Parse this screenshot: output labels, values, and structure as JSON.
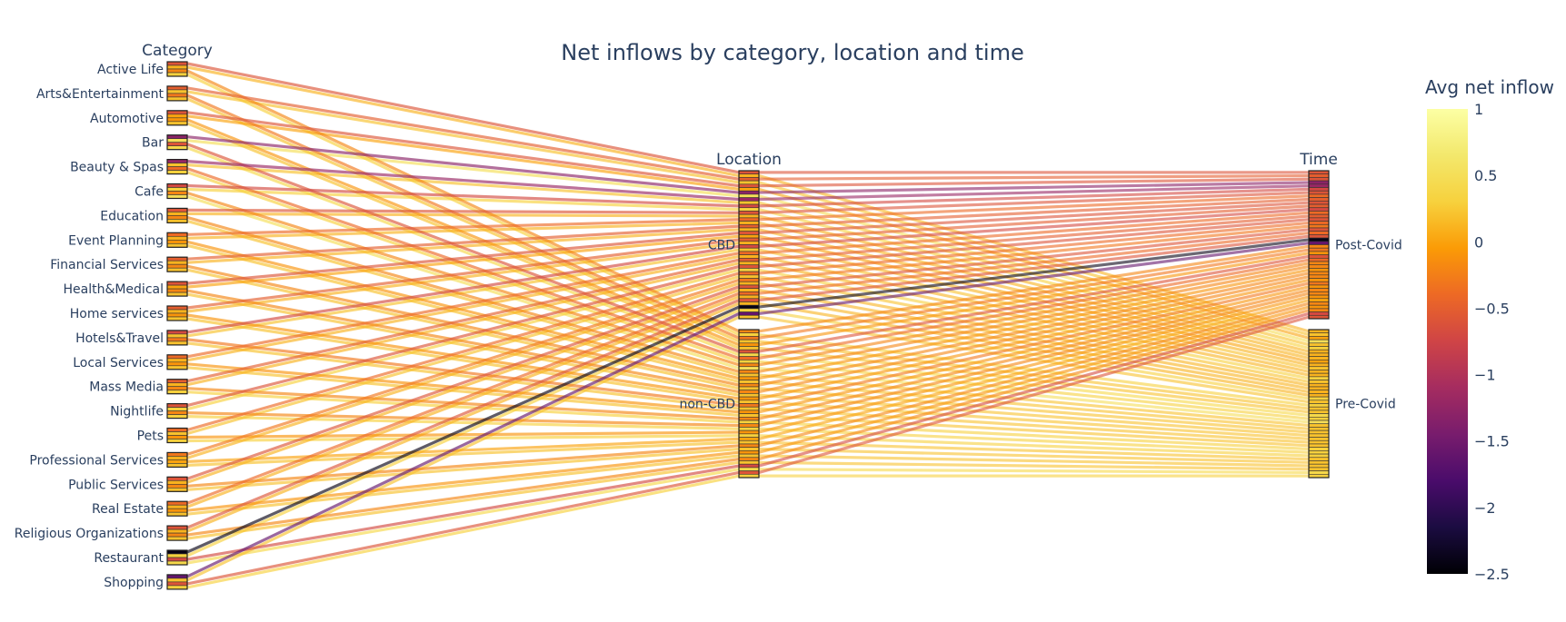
{
  "chart_data": {
    "type": "parallel_categories",
    "title": "Net inflows by category, location and time",
    "dimensions": [
      {
        "label": "Category",
        "categories": [
          "Active Life",
          "Arts&Entertainment",
          "Automotive",
          "Bar",
          "Beauty & Spas",
          "Cafe",
          "Education",
          "Event Planning",
          "Financial Services",
          "Health&Medical",
          "Home services",
          "Hotels&Travel",
          "Local Services",
          "Mass Media",
          "Nightlife",
          "Pets",
          "Professional Services",
          "Public Services",
          "Real Estate",
          "Religious Organizations",
          "Restaurant",
          "Shopping"
        ]
      },
      {
        "label": "Location",
        "categories": [
          "CBD",
          "non-CBD"
        ]
      },
      {
        "label": "Time",
        "categories": [
          "Post-Covid",
          "Pre-Covid"
        ]
      }
    ],
    "colorbar": {
      "title": "Avg net inflow",
      "range": [
        -2.5,
        1
      ],
      "ticks": [
        "1",
        "0.5",
        "0",
        "−0.5",
        "−1",
        "−1.5",
        "−2",
        "−2.5"
      ],
      "tickvals": [
        1,
        0.5,
        0,
        -0.5,
        -1,
        -1.5,
        -2,
        -2.5
      ],
      "colorscale": "Inferno"
    },
    "flows": [
      {
        "category": "Active Life",
        "location": "CBD",
        "time": "Post-Covid",
        "value": -0.6
      },
      {
        "category": "Active Life",
        "location": "CBD",
        "time": "Pre-Covid",
        "value": 0.1
      },
      {
        "category": "Active Life",
        "location": "non-CBD",
        "time": "Post-Covid",
        "value": -0.2
      },
      {
        "category": "Active Life",
        "location": "non-CBD",
        "time": "Pre-Covid",
        "value": 0.3
      },
      {
        "category": "Arts&Entertainment",
        "location": "CBD",
        "time": "Post-Covid",
        "value": -0.5
      },
      {
        "category": "Arts&Entertainment",
        "location": "CBD",
        "time": "Pre-Covid",
        "value": 0.2
      },
      {
        "category": "Arts&Entertainment",
        "location": "non-CBD",
        "time": "Post-Covid",
        "value": -0.3
      },
      {
        "category": "Arts&Entertainment",
        "location": "non-CBD",
        "time": "Pre-Covid",
        "value": 0.2
      },
      {
        "category": "Automotive",
        "location": "CBD",
        "time": "Post-Covid",
        "value": -0.6
      },
      {
        "category": "Automotive",
        "location": "CBD",
        "time": "Pre-Covid",
        "value": 0.0
      },
      {
        "category": "Automotive",
        "location": "non-CBD",
        "time": "Post-Covid",
        "value": -0.1
      },
      {
        "category": "Automotive",
        "location": "non-CBD",
        "time": "Pre-Covid",
        "value": 0.2
      },
      {
        "category": "Bar",
        "location": "CBD",
        "time": "Post-Covid",
        "value": -1.3
      },
      {
        "category": "Bar",
        "location": "CBD",
        "time": "Pre-Covid",
        "value": 0.5
      },
      {
        "category": "Bar",
        "location": "non-CBD",
        "time": "Post-Covid",
        "value": -0.6
      },
      {
        "category": "Bar",
        "location": "non-CBD",
        "time": "Pre-Covid",
        "value": 0.4
      },
      {
        "category": "Beauty & Spas",
        "location": "CBD",
        "time": "Post-Covid",
        "value": -1.2
      },
      {
        "category": "Beauty & Spas",
        "location": "CBD",
        "time": "Pre-Covid",
        "value": 0.2
      },
      {
        "category": "Beauty & Spas",
        "location": "non-CBD",
        "time": "Post-Covid",
        "value": -0.4
      },
      {
        "category": "Beauty & Spas",
        "location": "non-CBD",
        "time": "Pre-Covid",
        "value": 0.3
      },
      {
        "category": "Cafe",
        "location": "CBD",
        "time": "Post-Covid",
        "value": -0.7
      },
      {
        "category": "Cafe",
        "location": "CBD",
        "time": "Pre-Covid",
        "value": 0.3
      },
      {
        "category": "Cafe",
        "location": "non-CBD",
        "time": "Post-Covid",
        "value": -0.2
      },
      {
        "category": "Cafe",
        "location": "non-CBD",
        "time": "Pre-Covid",
        "value": 0.5
      },
      {
        "category": "Education",
        "location": "CBD",
        "time": "Post-Covid",
        "value": -0.6
      },
      {
        "category": "Education",
        "location": "CBD",
        "time": "Pre-Covid",
        "value": 0.1
      },
      {
        "category": "Education",
        "location": "non-CBD",
        "time": "Post-Covid",
        "value": -0.2
      },
      {
        "category": "Education",
        "location": "non-CBD",
        "time": "Pre-Covid",
        "value": 0.2
      },
      {
        "category": "Event Planning",
        "location": "CBD",
        "time": "Post-Covid",
        "value": -0.4
      },
      {
        "category": "Event Planning",
        "location": "CBD",
        "time": "Pre-Covid",
        "value": 0.1
      },
      {
        "category": "Event Planning",
        "location": "non-CBD",
        "time": "Post-Covid",
        "value": -0.1
      },
      {
        "category": "Event Planning",
        "location": "non-CBD",
        "time": "Pre-Covid",
        "value": 0.2
      },
      {
        "category": "Financial Services",
        "location": "CBD",
        "time": "Post-Covid",
        "value": -0.5
      },
      {
        "category": "Financial Services",
        "location": "CBD",
        "time": "Pre-Covid",
        "value": 0.1
      },
      {
        "category": "Financial Services",
        "location": "non-CBD",
        "time": "Post-Covid",
        "value": -0.2
      },
      {
        "category": "Financial Services",
        "location": "non-CBD",
        "time": "Pre-Covid",
        "value": 0.2
      },
      {
        "category": "Health&Medical",
        "location": "CBD",
        "time": "Post-Covid",
        "value": -0.6
      },
      {
        "category": "Health&Medical",
        "location": "CBD",
        "time": "Pre-Covid",
        "value": 0.0
      },
      {
        "category": "Health&Medical",
        "location": "non-CBD",
        "time": "Post-Covid",
        "value": -0.2
      },
      {
        "category": "Health&Medical",
        "location": "non-CBD",
        "time": "Pre-Covid",
        "value": 0.2
      },
      {
        "category": "Home services",
        "location": "CBD",
        "time": "Post-Covid",
        "value": -0.5
      },
      {
        "category": "Home services",
        "location": "CBD",
        "time": "Pre-Covid",
        "value": 0.1
      },
      {
        "category": "Home services",
        "location": "non-CBD",
        "time": "Post-Covid",
        "value": -0.1
      },
      {
        "category": "Home services",
        "location": "non-CBD",
        "time": "Pre-Covid",
        "value": 0.2
      },
      {
        "category": "Hotels&Travel",
        "location": "CBD",
        "time": "Post-Covid",
        "value": -0.7
      },
      {
        "category": "Hotels&Travel",
        "location": "CBD",
        "time": "Pre-Covid",
        "value": 0.2
      },
      {
        "category": "Hotels&Travel",
        "location": "non-CBD",
        "time": "Post-Covid",
        "value": -0.3
      },
      {
        "category": "Hotels&Travel",
        "location": "non-CBD",
        "time": "Pre-Covid",
        "value": 0.2
      },
      {
        "category": "Local Services",
        "location": "CBD",
        "time": "Post-Covid",
        "value": -0.4
      },
      {
        "category": "Local Services",
        "location": "CBD",
        "time": "Pre-Covid",
        "value": 0.1
      },
      {
        "category": "Local Services",
        "location": "non-CBD",
        "time": "Post-Covid",
        "value": -0.1
      },
      {
        "category": "Local Services",
        "location": "non-CBD",
        "time": "Pre-Covid",
        "value": 0.2
      },
      {
        "category": "Mass Media",
        "location": "CBD",
        "time": "Post-Covid",
        "value": -0.5
      },
      {
        "category": "Mass Media",
        "location": "CBD",
        "time": "Pre-Covid",
        "value": 0.1
      },
      {
        "category": "Mass Media",
        "location": "non-CBD",
        "time": "Post-Covid",
        "value": -0.2
      },
      {
        "category": "Mass Media",
        "location": "non-CBD",
        "time": "Pre-Covid",
        "value": 0.3
      },
      {
        "category": "Nightlife",
        "location": "CBD",
        "time": "Post-Covid",
        "value": -0.6
      },
      {
        "category": "Nightlife",
        "location": "CBD",
        "time": "Pre-Covid",
        "value": 0.3
      },
      {
        "category": "Nightlife",
        "location": "non-CBD",
        "time": "Post-Covid",
        "value": -0.2
      },
      {
        "category": "Nightlife",
        "location": "non-CBD",
        "time": "Pre-Covid",
        "value": 0.3
      },
      {
        "category": "Pets",
        "location": "CBD",
        "time": "Post-Covid",
        "value": -0.4
      },
      {
        "category": "Pets",
        "location": "CBD",
        "time": "Pre-Covid",
        "value": 0.2
      },
      {
        "category": "Pets",
        "location": "non-CBD",
        "time": "Post-Covid",
        "value": -0.1
      },
      {
        "category": "Pets",
        "location": "non-CBD",
        "time": "Pre-Covid",
        "value": 0.3
      },
      {
        "category": "Professional Services",
        "location": "CBD",
        "time": "Post-Covid",
        "value": -0.3
      },
      {
        "category": "Professional Services",
        "location": "CBD",
        "time": "Pre-Covid",
        "value": 0.1
      },
      {
        "category": "Professional Services",
        "location": "non-CBD",
        "time": "Post-Covid",
        "value": 0.0
      },
      {
        "category": "Professional Services",
        "location": "non-CBD",
        "time": "Pre-Covid",
        "value": 0.2
      },
      {
        "category": "Public Services",
        "location": "CBD",
        "time": "Post-Covid",
        "value": -0.6
      },
      {
        "category": "Public Services",
        "location": "CBD",
        "time": "Pre-Covid",
        "value": 0.1
      },
      {
        "category": "Public Services",
        "location": "non-CBD",
        "time": "Post-Covid",
        "value": -0.2
      },
      {
        "category": "Public Services",
        "location": "non-CBD",
        "time": "Pre-Covid",
        "value": 0.2
      },
      {
        "category": "Real Estate",
        "location": "CBD",
        "time": "Post-Covid",
        "value": -0.4
      },
      {
        "category": "Real Estate",
        "location": "CBD",
        "time": "Pre-Covid",
        "value": 0.1
      },
      {
        "category": "Real Estate",
        "location": "non-CBD",
        "time": "Post-Covid",
        "value": -0.1
      },
      {
        "category": "Real Estate",
        "location": "non-CBD",
        "time": "Pre-Covid",
        "value": 0.2
      },
      {
        "category": "Religious Organizations",
        "location": "CBD",
        "time": "Post-Covid",
        "value": -0.6
      },
      {
        "category": "Religious Organizations",
        "location": "CBD",
        "time": "Pre-Covid",
        "value": 0.1
      },
      {
        "category": "Religious Organizations",
        "location": "non-CBD",
        "time": "Post-Covid",
        "value": -0.2
      },
      {
        "category": "Religious Organizations",
        "location": "non-CBD",
        "time": "Pre-Covid",
        "value": 0.2
      },
      {
        "category": "Restaurant",
        "location": "CBD",
        "time": "Post-Covid",
        "value": -2.4
      },
      {
        "category": "Restaurant",
        "location": "CBD",
        "time": "Pre-Covid",
        "value": 0.3
      },
      {
        "category": "Restaurant",
        "location": "non-CBD",
        "time": "Post-Covid",
        "value": -0.7
      },
      {
        "category": "Restaurant",
        "location": "non-CBD",
        "time": "Pre-Covid",
        "value": 0.4
      },
      {
        "category": "Shopping",
        "location": "CBD",
        "time": "Post-Covid",
        "value": -1.6
      },
      {
        "category": "Shopping",
        "location": "CBD",
        "time": "Pre-Covid",
        "value": 0.2
      },
      {
        "category": "Shopping",
        "location": "non-CBD",
        "time": "Post-Covid",
        "value": -0.6
      },
      {
        "category": "Shopping",
        "location": "non-CBD",
        "time": "Pre-Covid",
        "value": 0.3
      }
    ]
  }
}
